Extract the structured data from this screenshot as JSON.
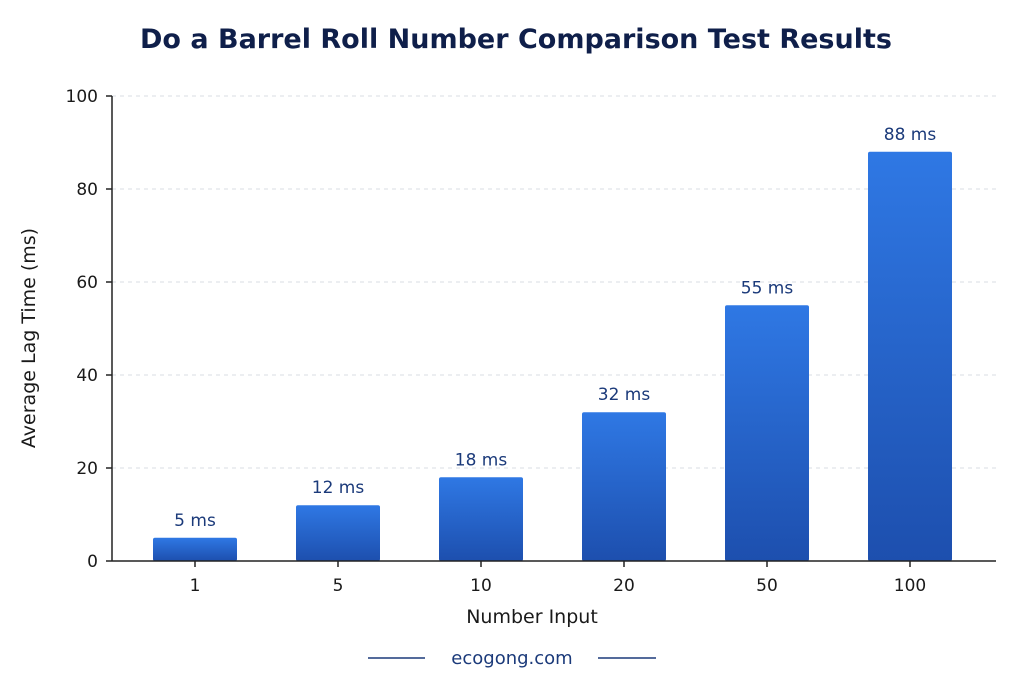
{
  "chart_data": {
    "type": "bar",
    "title": "Do a Barrel Roll Number Comparison Test Results",
    "xlabel": "Number Input",
    "ylabel": "Average Lag Time (ms)",
    "categories": [
      "1",
      "5",
      "10",
      "20",
      "50",
      "100"
    ],
    "values": [
      5,
      12,
      18,
      32,
      55,
      88
    ],
    "data_labels": [
      "5 ms",
      "12 ms",
      "18 ms",
      "32 ms",
      "55 ms",
      "88 ms"
    ],
    "ylim": [
      0,
      100
    ],
    "yticks": [
      0,
      20,
      40,
      60,
      80,
      100
    ],
    "grid": true,
    "legend": "none",
    "bar_color_top": "#2f78e4",
    "bar_color_bottom": "#1d4fae",
    "data_label_color": "#1b3a7a",
    "title_color": "#0f1f4a"
  },
  "footer": {
    "source": "ecogong.com"
  }
}
